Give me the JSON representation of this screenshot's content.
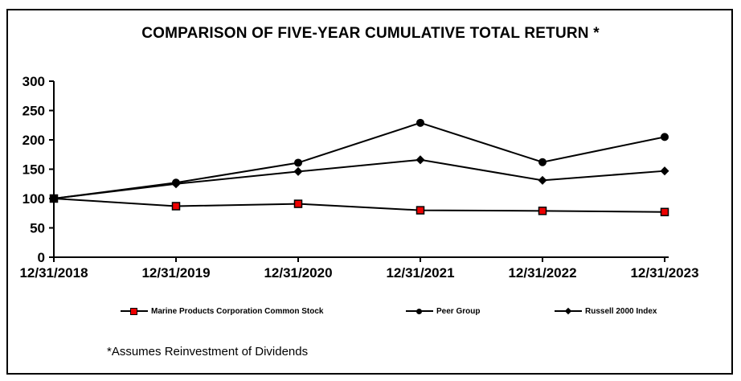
{
  "title": "COMPARISON OF FIVE-YEAR CUMULATIVE TOTAL RETURN *",
  "footnote": "*Assumes Reinvestment of Dividends",
  "colors": {
    "marine_red": "#EE0000",
    "line_black": "#000000",
    "background": "#FFFFFF"
  },
  "chart_data": {
    "type": "line",
    "title": "COMPARISON OF FIVE-YEAR CUMULATIVE TOTAL RETURN *",
    "categories": [
      "12/31/2018",
      "12/31/2019",
      "12/31/2020",
      "12/31/2021",
      "12/31/2022",
      "12/31/2023"
    ],
    "series": [
      {
        "name": "Marine Products Corporation Common Stock",
        "marker": "square",
        "color": "#EE0000",
        "values": [
          100,
          87,
          91,
          80,
          79,
          77
        ]
      },
      {
        "name": "Peer Group",
        "marker": "circle",
        "color": "#000000",
        "values": [
          100,
          127,
          161,
          229,
          162,
          205
        ]
      },
      {
        "name": "Russell 2000 Index",
        "marker": "diamond",
        "color": "#000000",
        "values": [
          100,
          125,
          146,
          166,
          131,
          147
        ]
      }
    ],
    "ylim": [
      0,
      300
    ],
    "yticks": [
      0,
      50,
      100,
      150,
      200,
      250,
      300
    ],
    "xlabel": "",
    "ylabel": "",
    "grid": false,
    "legend_position": "bottom",
    "annotation": "*Assumes Reinvestment of Dividends"
  }
}
